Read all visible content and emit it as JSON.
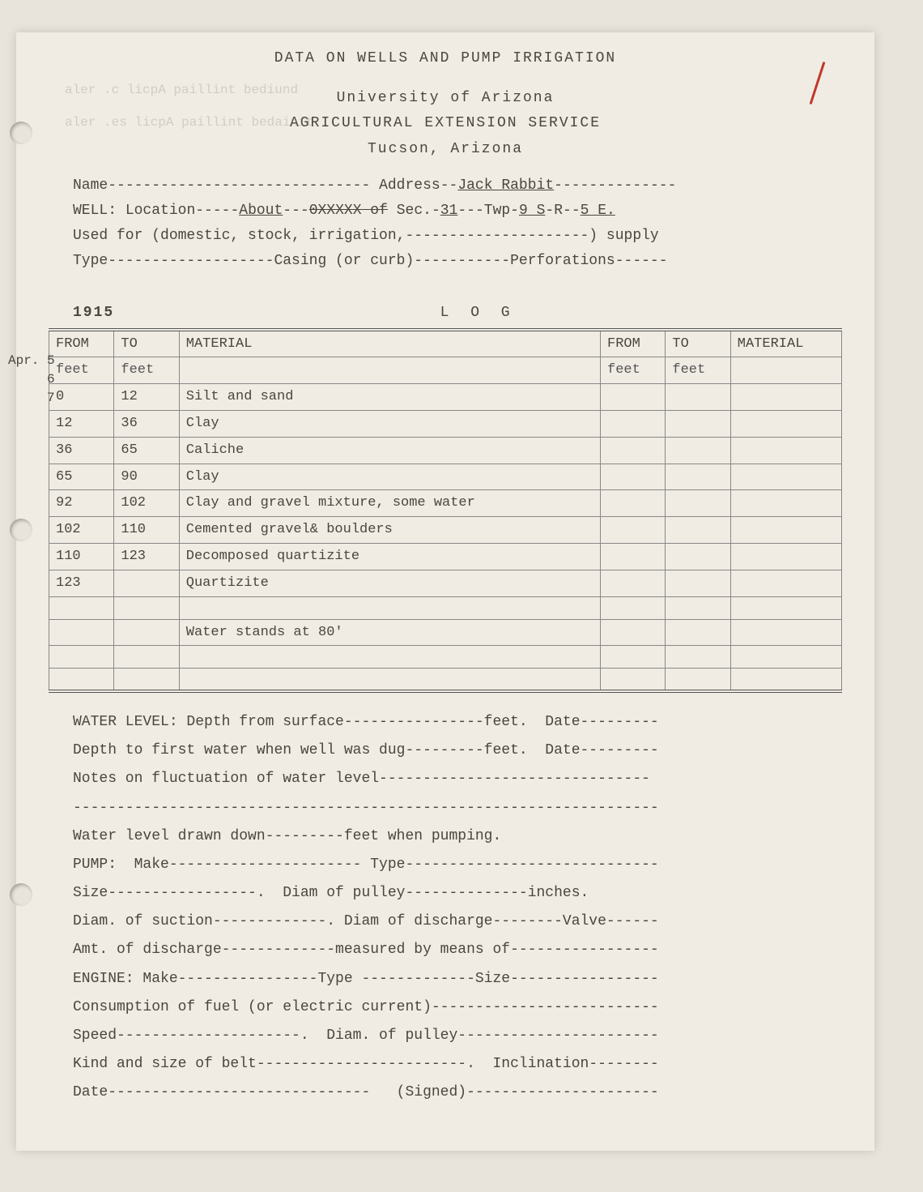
{
  "header": {
    "title": "DATA ON WELLS AND PUMP IRRIGATION",
    "org1": "University of Arizona",
    "org2": "AGRICULTURAL EXTENSION SERVICE",
    "city": "Tucson, Arizona"
  },
  "form": {
    "name_label": "Name",
    "address_label": "Address",
    "address_value": "Jack Rabbit",
    "well_label": "WELL:",
    "location_label": "Location",
    "location_value": "About",
    "sec_label": "Sec.",
    "sec_value": "31",
    "twp_label": "Twp",
    "twp_value": "9 S",
    "r_label": "R",
    "r_value": "5 E.",
    "used_for": "Used for (domestic, stock, irrigation,---------------------) supply",
    "type_line": "Type-------------------Casing (or curb)-----------Perforations------"
  },
  "margin_dates": "Apr. 5\n     6\n     7",
  "year": "1915",
  "log_heading": "L O G",
  "log_table": {
    "headers": [
      "FROM",
      "TO",
      "MATERIAL",
      "FROM",
      "TO",
      "MATERIAL"
    ],
    "subheaders": [
      "feet",
      "feet",
      "",
      "feet",
      "feet",
      ""
    ],
    "rows": [
      [
        "0",
        "12",
        "Silt and sand",
        "",
        "",
        ""
      ],
      [
        "12",
        "36",
        "Clay",
        "",
        "",
        ""
      ],
      [
        "36",
        "65",
        "Caliche",
        "",
        "",
        ""
      ],
      [
        "65",
        "90",
        "Clay",
        "",
        "",
        ""
      ],
      [
        "92",
        "102",
        "Clay and gravel mixture, some water",
        "",
        "",
        ""
      ],
      [
        "102",
        "110",
        "Cemented gravel& boulders",
        "",
        "",
        ""
      ],
      [
        "110",
        "123",
        "Decomposed quartizite",
        "",
        "",
        ""
      ],
      [
        "123",
        "",
        "Quartizite",
        "",
        "",
        ""
      ]
    ],
    "water_note": "Water stands at 80'"
  },
  "lower": {
    "l1": "WATER LEVEL: Depth from surface----------------feet.  Date---------",
    "l2": "Depth to first water when well was dug---------feet.  Date---------",
    "l3": "Notes on fluctuation of water level-------------------------------",
    "l3b": "-------------------------------------------------------------------",
    "l4": "Water level drawn down---------feet when pumping.",
    "l5": "PUMP:  Make---------------------- Type-----------------------------",
    "l6": "Size-----------------.  Diam of pulley--------------inches.",
    "l7": "Diam. of suction-------------. Diam of discharge--------Valve------",
    "l8": "Amt. of discharge-------------measured by means of-----------------",
    "l9": "ENGINE: Make----------------Type -------------Size-----------------",
    "l10": "Consumption of fuel (or electric current)--------------------------",
    "l11": "Speed---------------------.  Diam. of pulley-----------------------",
    "l12": "Kind and size of belt------------------------.  Inclination--------",
    "l13": "Date------------------------------   (Signed)----------------------"
  }
}
